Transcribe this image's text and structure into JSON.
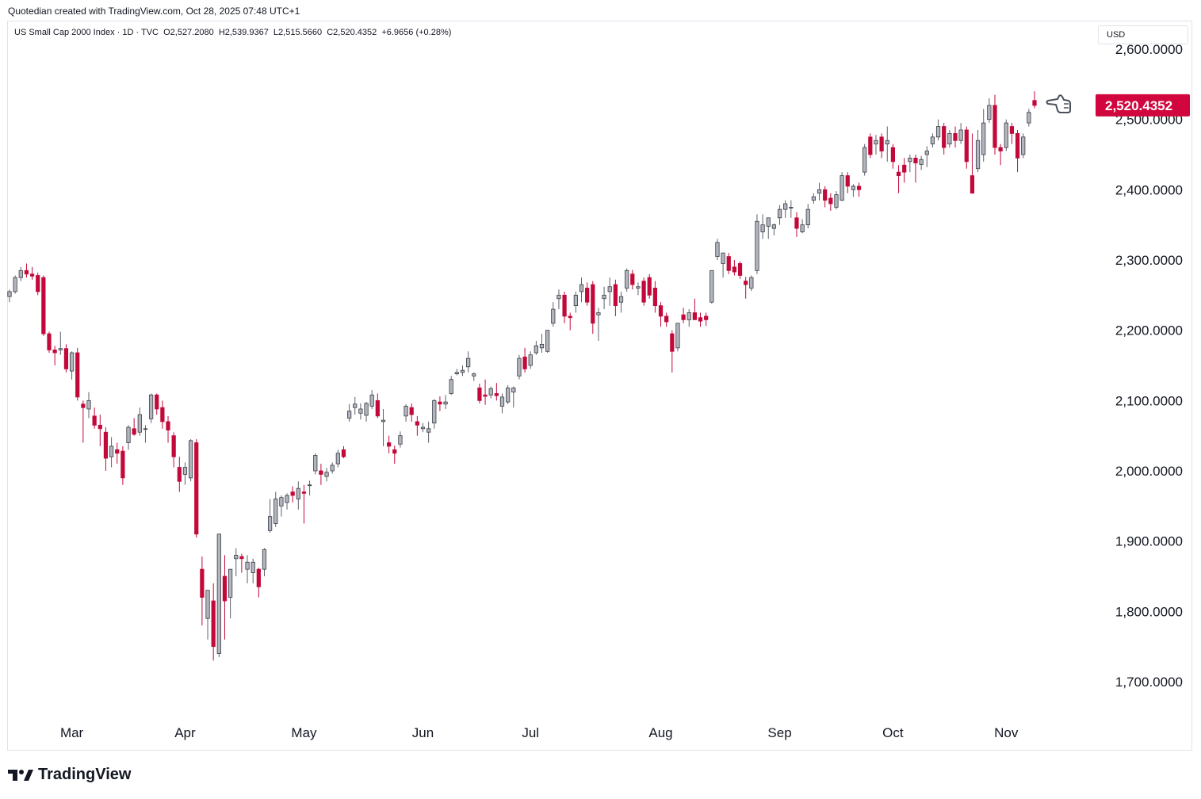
{
  "header": {
    "credit": "Quotedian created with TradingView.com, Oct 28, 2025 07:48 UTC+1",
    "legend": "US Small Cap 2000 Index · 1D · TVC  O2,527.2080  H2,539.9367  L2,515.5660  C2,520.4352  +6.9656 (+0.28%)"
  },
  "currency_button": "USD",
  "footer": {
    "brand": "TradingView"
  },
  "colors": {
    "up": "#b2b5be",
    "down": "#c2093a",
    "wick_up": "#5d606b",
    "wick_down": "#c2093a",
    "price_tag": "#d1063e"
  },
  "last_price_label": "2,520.4352",
  "chart_data": {
    "type": "candlestick",
    "y_ticks": [
      "2,600.0000",
      "2,500.0000",
      "2,400.0000",
      "2,300.0000",
      "2,200.0000",
      "2,100.0000",
      "2,000.0000",
      "1,900.0000",
      "1,800.0000",
      "1,700.0000"
    ],
    "y_tick_values": [
      2600,
      2500,
      2400,
      2300,
      2200,
      2100,
      2000,
      1900,
      1800,
      1700
    ],
    "x_ticks": [
      "Mar",
      "Apr",
      "May",
      "Jun",
      "Jul",
      "Aug",
      "Sep",
      "Oct",
      "Nov"
    ],
    "ylim": [
      1650,
      2640
    ],
    "grid": false,
    "candles": [
      [
        2248,
        2258,
        2240,
        2255
      ],
      [
        2255,
        2278,
        2252,
        2275
      ],
      [
        2275,
        2290,
        2270,
        2285
      ],
      [
        2285,
        2295,
        2275,
        2280
      ],
      [
        2280,
        2290,
        2272,
        2277
      ],
      [
        2278,
        2282,
        2250,
        2255
      ],
      [
        2275,
        2278,
        2192,
        2195
      ],
      [
        2195,
        2198,
        2168,
        2172
      ],
      [
        2172,
        2178,
        2150,
        2168
      ],
      [
        2172,
        2198,
        2165,
        2174
      ],
      [
        2174,
        2180,
        2140,
        2145
      ],
      [
        2142,
        2170,
        2130,
        2168
      ],
      [
        2168,
        2175,
        2100,
        2105
      ],
      [
        2095,
        2100,
        2040,
        2090
      ],
      [
        2088,
        2112,
        2075,
        2100
      ],
      [
        2078,
        2090,
        2060,
        2065
      ],
      [
        2065,
        2080,
        2035,
        2060
      ],
      [
        2055,
        2062,
        2000,
        2018
      ],
      [
        2020,
        2048,
        2005,
        2035
      ],
      [
        2030,
        2040,
        2010,
        2025
      ],
      [
        2028,
        2035,
        1980,
        1990
      ],
      [
        2040,
        2065,
        2030,
        2062
      ],
      [
        2060,
        2075,
        2050,
        2052
      ],
      [
        2055,
        2090,
        2050,
        2080
      ],
      [
        2060,
        2065,
        2040,
        2060
      ],
      [
        2074,
        2110,
        2068,
        2108
      ],
      [
        2108,
        2110,
        2080,
        2088
      ],
      [
        2090,
        2100,
        2060,
        2070
      ],
      [
        2070,
        2078,
        2040,
        2058
      ],
      [
        2050,
        2055,
        2005,
        2020
      ],
      [
        2005,
        2020,
        1970,
        1985
      ],
      [
        1995,
        2012,
        1980,
        2005
      ],
      [
        1990,
        2045,
        1985,
        2043
      ],
      [
        2040,
        2045,
        1905,
        1910
      ],
      [
        1860,
        1878,
        1780,
        1820
      ],
      [
        1790,
        1830,
        1760,
        1830
      ],
      [
        1815,
        1840,
        1730,
        1750
      ],
      [
        1740,
        1910,
        1735,
        1910
      ],
      [
        1850,
        1880,
        1760,
        1815
      ],
      [
        1820,
        1860,
        1790,
        1860
      ],
      [
        1875,
        1890,
        1850,
        1880
      ],
      [
        1878,
        1882,
        1855,
        1875
      ],
      [
        1860,
        1880,
        1840,
        1870
      ],
      [
        1855,
        1875,
        1840,
        1870
      ],
      [
        1860,
        1862,
        1820,
        1835
      ],
      [
        1860,
        1890,
        1850,
        1888
      ],
      [
        1915,
        1960,
        1912,
        1935
      ],
      [
        1925,
        1970,
        1920,
        1960
      ],
      [
        1950,
        1965,
        1935,
        1962
      ],
      [
        1955,
        1968,
        1945,
        1965
      ],
      [
        1970,
        1978,
        1955,
        1965
      ],
      [
        1960,
        1985,
        1945,
        1975
      ],
      [
        1970,
        1980,
        1925,
        1968
      ],
      [
        1980,
        1986,
        1965,
        1980
      ],
      [
        2000,
        2025,
        1995,
        2022
      ],
      [
        2000,
        2010,
        1980,
        1995
      ],
      [
        1992,
        2004,
        1985,
        1998
      ],
      [
        2000,
        2012,
        1996,
        2008
      ],
      [
        2010,
        2030,
        2005,
        2025
      ],
      [
        2030,
        2035,
        2018,
        2020
      ],
      [
        2075,
        2095,
        2070,
        2085
      ],
      [
        2090,
        2105,
        2080,
        2095
      ],
      [
        2082,
        2096,
        2073,
        2088
      ],
      [
        2079,
        2098,
        2070,
        2096
      ],
      [
        2092,
        2115,
        2088,
        2108
      ],
      [
        2100,
        2110,
        2075,
        2078
      ],
      [
        2070,
        2088,
        2035,
        2072
      ],
      [
        2040,
        2050,
        2025,
        2035
      ],
      [
        2030,
        2036,
        2010,
        2025
      ],
      [
        2038,
        2056,
        2033,
        2050
      ],
      [
        2078,
        2095,
        2070,
        2092
      ],
      [
        2090,
        2096,
        2070,
        2080
      ],
      [
        2070,
        2078,
        2050,
        2065
      ],
      [
        2060,
        2068,
        2055,
        2062
      ],
      [
        2055,
        2070,
        2040,
        2060
      ],
      [
        2068,
        2102,
        2060,
        2100
      ],
      [
        2098,
        2106,
        2085,
        2095
      ],
      [
        2095,
        2108,
        2088,
        2098
      ],
      [
        2110,
        2135,
        2108,
        2130
      ],
      [
        2138,
        2145,
        2136,
        2140
      ],
      [
        2140,
        2150,
        2135,
        2143
      ],
      [
        2148,
        2170,
        2140,
        2160
      ],
      [
        2135,
        2140,
        2128,
        2138
      ],
      [
        2118,
        2124,
        2096,
        2100
      ],
      [
        2108,
        2130,
        2094,
        2106
      ],
      [
        2108,
        2120,
        2103,
        2117
      ],
      [
        2110,
        2125,
        2100,
        2107
      ],
      [
        2092,
        2110,
        2082,
        2105
      ],
      [
        2098,
        2122,
        2095,
        2118
      ],
      [
        2112,
        2120,
        2090,
        2118
      ],
      [
        2135,
        2165,
        2130,
        2160
      ],
      [
        2162,
        2175,
        2140,
        2145
      ],
      [
        2150,
        2170,
        2145,
        2165
      ],
      [
        2168,
        2185,
        2165,
        2178
      ],
      [
        2175,
        2195,
        2168,
        2180
      ],
      [
        2170,
        2200,
        2168,
        2200
      ],
      [
        2210,
        2240,
        2205,
        2230
      ],
      [
        2245,
        2258,
        2230,
        2250
      ],
      [
        2250,
        2255,
        2210,
        2220
      ],
      [
        2220,
        2225,
        2200,
        2218
      ],
      [
        2235,
        2255,
        2225,
        2250
      ],
      [
        2255,
        2275,
        2240,
        2265
      ],
      [
        2260,
        2268,
        2235,
        2240
      ],
      [
        2265,
        2270,
        2195,
        2210
      ],
      [
        2222,
        2232,
        2185,
        2225
      ],
      [
        2245,
        2262,
        2230,
        2250
      ],
      [
        2255,
        2275,
        2235,
        2262
      ],
      [
        2265,
        2272,
        2220,
        2235
      ],
      [
        2240,
        2255,
        2225,
        2248
      ],
      [
        2260,
        2288,
        2255,
        2285
      ],
      [
        2280,
        2286,
        2258,
        2265
      ],
      [
        2260,
        2268,
        2250,
        2262
      ],
      [
        2270,
        2275,
        2235,
        2240
      ],
      [
        2275,
        2280,
        2245,
        2250
      ],
      [
        2260,
        2270,
        2225,
        2235
      ],
      [
        2235,
        2240,
        2205,
        2220
      ],
      [
        2220,
        2225,
        2205,
        2212
      ],
      [
        2195,
        2200,
        2140,
        2170
      ],
      [
        2175,
        2210,
        2170,
        2210
      ],
      [
        2222,
        2232,
        2210,
        2215
      ],
      [
        2215,
        2230,
        2205,
        2225
      ],
      [
        2225,
        2245,
        2215,
        2215
      ],
      [
        2218,
        2225,
        2205,
        2213
      ],
      [
        2220,
        2225,
        2206,
        2215
      ],
      [
        2240,
        2285,
        2238,
        2285
      ],
      [
        2305,
        2330,
        2300,
        2325
      ],
      [
        2295,
        2305,
        2275,
        2310
      ],
      [
        2305,
        2310,
        2280,
        2285
      ],
      [
        2290,
        2300,
        2278,
        2283
      ],
      [
        2295,
        2298,
        2273,
        2278
      ],
      [
        2270,
        2276,
        2245,
        2265
      ],
      [
        2260,
        2278,
        2256,
        2275
      ],
      [
        2285,
        2365,
        2280,
        2355
      ],
      [
        2340,
        2365,
        2330,
        2350
      ],
      [
        2348,
        2358,
        2330,
        2360
      ],
      [
        2345,
        2352,
        2335,
        2350
      ],
      [
        2360,
        2378,
        2350,
        2372
      ],
      [
        2372,
        2385,
        2360,
        2380
      ],
      [
        2375,
        2385,
        2360,
        2375
      ],
      [
        2360,
        2368,
        2333,
        2345
      ],
      [
        2340,
        2358,
        2338,
        2350
      ],
      [
        2350,
        2380,
        2345,
        2372
      ],
      [
        2385,
        2395,
        2380,
        2390
      ],
      [
        2395,
        2410,
        2385,
        2400
      ],
      [
        2400,
        2405,
        2375,
        2385
      ],
      [
        2388,
        2395,
        2370,
        2380
      ],
      [
        2375,
        2398,
        2372,
        2393
      ],
      [
        2385,
        2425,
        2384,
        2420
      ],
      [
        2420,
        2425,
        2395,
        2405
      ],
      [
        2400,
        2408,
        2390,
        2405
      ],
      [
        2405,
        2410,
        2390,
        2400
      ],
      [
        2425,
        2465,
        2420,
        2460
      ],
      [
        2475,
        2480,
        2445,
        2450
      ],
      [
        2465,
        2478,
        2450,
        2470
      ],
      [
        2475,
        2480,
        2445,
        2455
      ],
      [
        2465,
        2490,
        2440,
        2470
      ],
      [
        2460,
        2465,
        2430,
        2440
      ],
      [
        2425,
        2435,
        2395,
        2420
      ],
      [
        2435,
        2445,
        2410,
        2425
      ],
      [
        2440,
        2450,
        2425,
        2445
      ],
      [
        2445,
        2450,
        2410,
        2438
      ],
      [
        2436,
        2448,
        2428,
        2443
      ],
      [
        2450,
        2462,
        2432,
        2455
      ],
      [
        2465,
        2480,
        2460,
        2475
      ],
      [
        2475,
        2500,
        2470,
        2490
      ],
      [
        2490,
        2495,
        2450,
        2460
      ],
      [
        2465,
        2485,
        2460,
        2480
      ],
      [
        2480,
        2490,
        2460,
        2470
      ],
      [
        2470,
        2495,
        2465,
        2485
      ],
      [
        2485,
        2490,
        2430,
        2440
      ],
      [
        2420,
        2480,
        2395,
        2395
      ],
      [
        2430,
        2485,
        2425,
        2470
      ],
      [
        2450,
        2515,
        2440,
        2495
      ],
      [
        2500,
        2530,
        2495,
        2520
      ],
      [
        2520,
        2535,
        2450,
        2460
      ],
      [
        2460,
        2465,
        2435,
        2455
      ],
      [
        2460,
        2500,
        2455,
        2495
      ],
      [
        2490,
        2495,
        2465,
        2480
      ],
      [
        2480,
        2485,
        2425,
        2445
      ],
      [
        2450,
        2480,
        2445,
        2475
      ],
      [
        2495,
        2515,
        2490,
        2510
      ],
      [
        2527,
        2540,
        2516,
        2520
      ]
    ]
  }
}
